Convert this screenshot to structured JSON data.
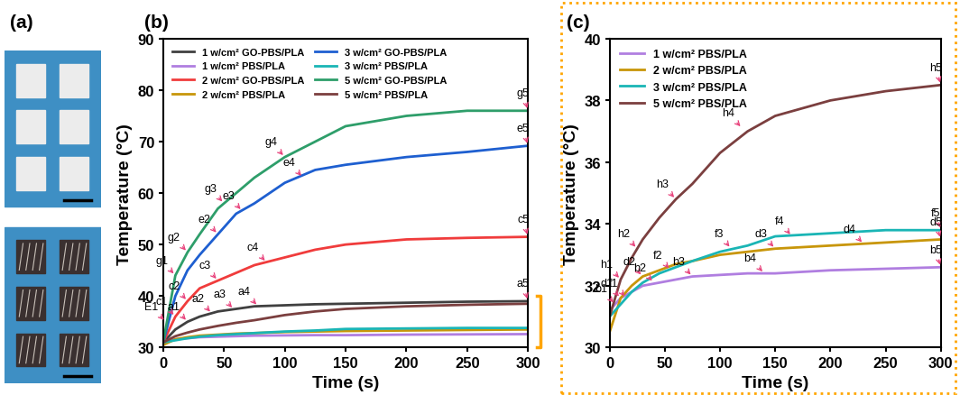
{
  "panel_labels": [
    "(a)",
    "(b)",
    "(c)"
  ],
  "chart_data": [
    {
      "type": "line",
      "x_label": "Time (s)",
      "y_label": "Temperature (°C)",
      "x": [
        0,
        10,
        20,
        30,
        45,
        60,
        75,
        100,
        125,
        150,
        200,
        250,
        300
      ],
      "xlim": [
        0,
        300
      ],
      "xticks": [
        0,
        50,
        100,
        150,
        200,
        250,
        300
      ],
      "ylim": [
        30,
        90
      ],
      "yticks": [
        30,
        40,
        50,
        60,
        70,
        80,
        90
      ],
      "legend": "upper left",
      "series": [
        {
          "name": "1 w/cm² GO-PBS/PLA",
          "color": "#404040",
          "values": [
            31,
            33.5,
            35,
            36,
            37,
            37.5,
            38,
            38.2,
            38.4,
            38.5,
            38.7,
            38.9,
            39
          ]
        },
        {
          "name": "1 w/cm² PBS/PLA",
          "color": "#b07ee0",
          "values": [
            31.2,
            31.6,
            31.8,
            32,
            32.1,
            32.2,
            32.3,
            32.35,
            32.4,
            32.4,
            32.5,
            32.55,
            32.6
          ]
        },
        {
          "name": "2 w/cm² GO-PBS/PLA",
          "color": "#f03c3c",
          "values": [
            31,
            36,
            39,
            41.5,
            43,
            44.5,
            46,
            47.5,
            49,
            50,
            51,
            51.3,
            51.5
          ]
        },
        {
          "name": "2 w/cm² PBS/PLA",
          "color": "#c8960a",
          "values": [
            30.5,
            31.6,
            32,
            32.3,
            32.5,
            32.7,
            32.8,
            33,
            33.1,
            33.2,
            33.3,
            33.4,
            33.5
          ]
        },
        {
          "name": "3 w/cm² GO-PBS/PLA",
          "color": "#1e5fd0",
          "values": [
            31,
            40,
            45,
            48,
            52,
            56,
            58,
            62,
            64.5,
            65.5,
            67,
            68,
            69.2
          ]
        },
        {
          "name": "3 w/cm² PBS/PLA",
          "color": "#1ab5b5",
          "values": [
            31,
            31.4,
            31.8,
            32.1,
            32.4,
            32.6,
            32.8,
            33.1,
            33.3,
            33.6,
            33.7,
            33.8,
            33.8
          ]
        },
        {
          "name": "5 w/cm² GO-PBS/PLA",
          "color": "#2e9e6a",
          "values": [
            31,
            44,
            48.5,
            52,
            57,
            60,
            63,
            67,
            70,
            73,
            75,
            76,
            76
          ]
        },
        {
          "name": "5 w/cm² PBS/PLA",
          "color": "#7b3f3f",
          "values": [
            31,
            32.2,
            32.9,
            33.5,
            34.2,
            34.8,
            35.3,
            36.3,
            37,
            37.5,
            38,
            38.3,
            38.5
          ]
        }
      ],
      "annotations": [
        {
          "text": "E1",
          "x": 2,
          "y": 35
        },
        {
          "text": "a1",
          "x": 20,
          "y": 35
        },
        {
          "text": "a2",
          "x": 40,
          "y": 36.6
        },
        {
          "text": "a3",
          "x": 58,
          "y": 37.4
        },
        {
          "text": "a4",
          "x": 78,
          "y": 38
        },
        {
          "text": "a5",
          "x": 300,
          "y": 39
        },
        {
          "text": "c1",
          "x": 10,
          "y": 36
        },
        {
          "text": "c2",
          "x": 20,
          "y": 39
        },
        {
          "text": "c3",
          "x": 45,
          "y": 43
        },
        {
          "text": "c4",
          "x": 85,
          "y": 46.5
        },
        {
          "text": "c5",
          "x": 300,
          "y": 51.5
        },
        {
          "text": "e2",
          "x": 45,
          "y": 52
        },
        {
          "text": "e3",
          "x": 65,
          "y": 56.5
        },
        {
          "text": "e4",
          "x": 115,
          "y": 63
        },
        {
          "text": "e5",
          "x": 300,
          "y": 69.2
        },
        {
          "text": "g1",
          "x": 10,
          "y": 44
        },
        {
          "text": "g2",
          "x": 20,
          "y": 48.5
        },
        {
          "text": "g3",
          "x": 50,
          "y": 58
        },
        {
          "text": "g4",
          "x": 100,
          "y": 67
        },
        {
          "text": "g5",
          "x": 300,
          "y": 76
        }
      ]
    },
    {
      "type": "line",
      "x_label": "Time (s)",
      "y_label": "Temperature (°C)",
      "x": [
        0,
        10,
        20,
        30,
        45,
        60,
        75,
        100,
        125,
        150,
        200,
        250,
        300
      ],
      "xlim": [
        0,
        300
      ],
      "xticks": [
        0,
        50,
        100,
        150,
        200,
        250,
        300
      ],
      "ylim": [
        30,
        40
      ],
      "yticks": [
        30,
        32,
        34,
        36,
        38,
        40
      ],
      "legend": "upper left",
      "series": [
        {
          "name": "1 w/cm² PBS/PLA",
          "color": "#b07ee0",
          "values": [
            31.2,
            31.6,
            31.8,
            32,
            32.1,
            32.2,
            32.3,
            32.35,
            32.4,
            32.4,
            32.5,
            32.55,
            32.6
          ]
        },
        {
          "name": "2 w/cm² PBS/PLA",
          "color": "#c8960a",
          "values": [
            30.5,
            31.6,
            32,
            32.3,
            32.5,
            32.7,
            32.8,
            33,
            33.1,
            33.2,
            33.3,
            33.4,
            33.5
          ]
        },
        {
          "name": "3 w/cm² PBS/PLA",
          "color": "#1ab5b5",
          "values": [
            31,
            31.4,
            31.8,
            32.1,
            32.4,
            32.6,
            32.8,
            33.1,
            33.3,
            33.6,
            33.7,
            33.8,
            33.8
          ]
        },
        {
          "name": "5 w/cm² PBS/PLA",
          "color": "#7b3f3f",
          "values": [
            31,
            32.2,
            32.9,
            33.5,
            34.2,
            34.8,
            35.3,
            36.3,
            37,
            37.5,
            38,
            38.3,
            38.5
          ]
        }
      ],
      "annotations": [
        {
          "text": "h1",
          "x": 10,
          "y": 32.2
        },
        {
          "text": "h2",
          "x": 25,
          "y": 33.2
        },
        {
          "text": "h3",
          "x": 60,
          "y": 34.8
        },
        {
          "text": "h4",
          "x": 120,
          "y": 37.1
        },
        {
          "text": "h5",
          "x": 300,
          "y": 38.5
        },
        {
          "text": "f1",
          "x": 15,
          "y": 31.6
        },
        {
          "text": "f2",
          "x": 55,
          "y": 32.5
        },
        {
          "text": "f3",
          "x": 110,
          "y": 33.2
        },
        {
          "text": "f4",
          "x": 165,
          "y": 33.6
        },
        {
          "text": "f5",
          "x": 300,
          "y": 33.8
        },
        {
          "text": "d1",
          "x": 10,
          "y": 31.6
        },
        {
          "text": "d2",
          "x": 30,
          "y": 32.3
        },
        {
          "text": "d3",
          "x": 150,
          "y": 33.2
        },
        {
          "text": "d4",
          "x": 230,
          "y": 33.35
        },
        {
          "text": "d5",
          "x": 300,
          "y": 33.5
        },
        {
          "text": "b1",
          "x": 5,
          "y": 31.4
        },
        {
          "text": "b2",
          "x": 40,
          "y": 32.1
        },
        {
          "text": "b3",
          "x": 75,
          "y": 32.3
        },
        {
          "text": "b4",
          "x": 140,
          "y": 32.4
        },
        {
          "text": "b5",
          "x": 300,
          "y": 32.6
        }
      ]
    }
  ]
}
